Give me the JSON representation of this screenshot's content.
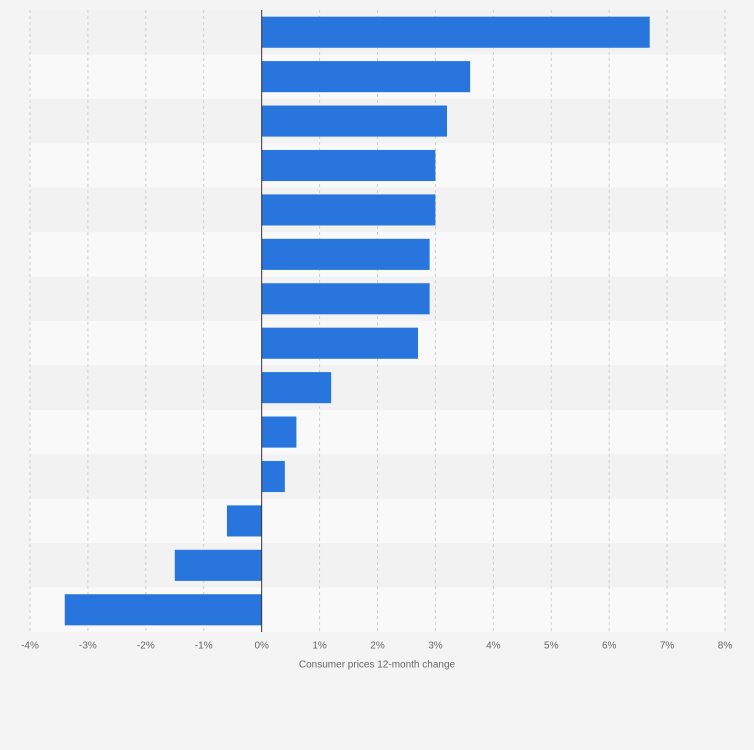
{
  "chart_data": {
    "type": "bar",
    "orientation": "horizontal",
    "categories": [
      null,
      null,
      null,
      null,
      null,
      null,
      null,
      null,
      null,
      null,
      null,
      null,
      null,
      null
    ],
    "values": [
      6.7,
      3.6,
      3.2,
      3.0,
      3.0,
      2.9,
      2.9,
      2.7,
      1.2,
      0.6,
      0.4,
      -0.6,
      -1.5,
      -3.4
    ],
    "color": "#2876dd",
    "xlim": [
      -4,
      8
    ],
    "xticks": [
      {
        "value": -4,
        "label": "-4%"
      },
      {
        "value": -3,
        "label": "-3%"
      },
      {
        "value": -2,
        "label": "-2%"
      },
      {
        "value": -1,
        "label": "-1%"
      },
      {
        "value": 0,
        "label": "0%"
      },
      {
        "value": 1,
        "label": "1%"
      },
      {
        "value": 2,
        "label": "2%"
      },
      {
        "value": 3,
        "label": "3%"
      },
      {
        "value": 4,
        "label": "4%"
      },
      {
        "value": 5,
        "label": "5%"
      },
      {
        "value": 6,
        "label": "6%"
      },
      {
        "value": 7,
        "label": "7%"
      },
      {
        "value": 8,
        "label": "8%"
      }
    ],
    "xlabel": "Consumer prices 12-month change",
    "grid": true
  }
}
